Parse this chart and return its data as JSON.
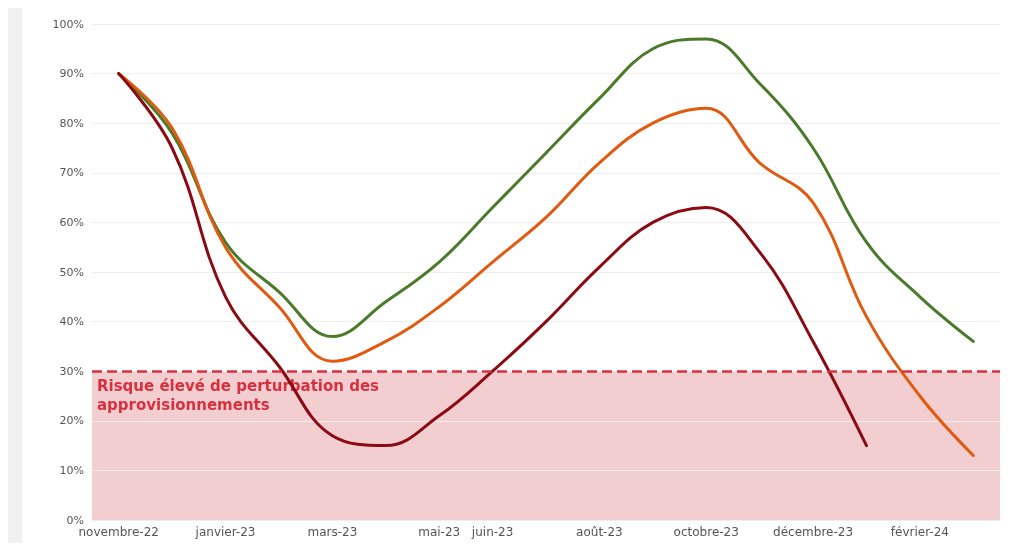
{
  "chart_data": {
    "type": "line",
    "categories": [
      "novembre-22",
      null,
      "janvier-23",
      null,
      "mars-23",
      null,
      "mai-23",
      "juin-23",
      null,
      "août-23",
      null,
      "octobre-23",
      null,
      "décembre-23",
      null,
      "février-24",
      null
    ],
    "series": [
      {
        "color": "#4a7a2a",
        "values": [
          90,
          78,
          56,
          46,
          37,
          44,
          52,
          63,
          74,
          85,
          95,
          97,
          88,
          75,
          56,
          45,
          36
        ]
      },
      {
        "color": "#e05a10",
        "values": [
          90,
          79,
          55,
          43,
          32,
          36,
          43,
          52,
          61,
          72,
          80,
          83,
          72,
          64,
          41,
          25,
          13
        ]
      },
      {
        "color": "#8b0a14",
        "values": [
          90,
          75,
          45,
          31,
          17,
          15,
          21,
          30,
          40,
          51,
          60,
          63,
          54,
          36,
          15,
          null,
          null
        ]
      }
    ],
    "ylim": [
      0,
      100
    ],
    "yticks": [
      {
        "value": 0,
        "label": "0%"
      },
      {
        "value": 10,
        "label": "10%"
      },
      {
        "value": 20,
        "label": "20%"
      },
      {
        "value": 30,
        "label": "30%"
      },
      {
        "value": 40,
        "label": "40%"
      },
      {
        "value": 50,
        "label": "50%"
      },
      {
        "value": 60,
        "label": "60%"
      },
      {
        "value": 70,
        "label": "70%"
      },
      {
        "value": 80,
        "label": "80%"
      },
      {
        "value": 90,
        "label": "90%"
      },
      {
        "value": 100,
        "label": "100%"
      }
    ],
    "grid": "y",
    "marker": "none",
    "line_style": "solid",
    "ref_lines": [
      {
        "axis": "y",
        "value": 30,
        "color": "#d9303f",
        "line_style": "dashed"
      }
    ],
    "bands": [
      {
        "axis": "y",
        "from": 0,
        "to": 30,
        "label": "Risque élevé de perturbation des approvisionnements",
        "color": "#f2c9cc"
      }
    ]
  }
}
